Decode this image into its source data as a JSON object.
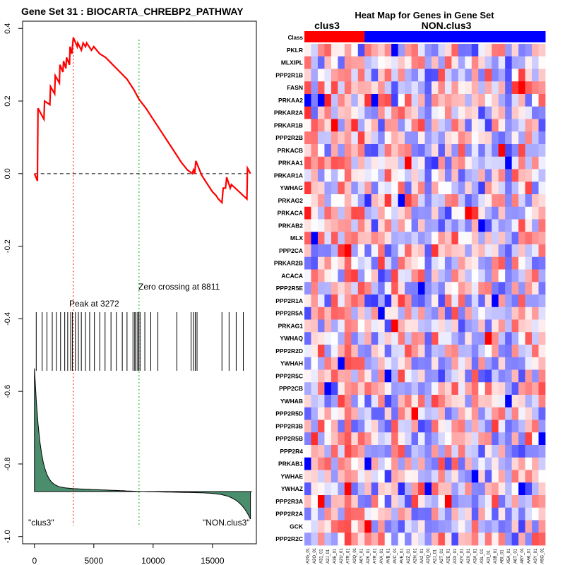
{
  "left_panel": {
    "title": "Gene Set  31 : BIOCARTA_CHREBP2_PATHWAY",
    "peak_label": "Peak at 3272",
    "zero_label": "Zero crossing at 8811",
    "class_left": "\"clus3\"",
    "class_right": "\"NON.clus3\"",
    "colors": {
      "es_line": "#ff0000",
      "peak_line": "#ff0000",
      "zero_line": "#00aa00",
      "ranked_fill": "#4a8e6e",
      "hits": "#000000"
    }
  },
  "chart_data": [
    {
      "type": "line",
      "title": "Gene Set  31 : BIOCARTA_CHREBP2_PATHWAY",
      "xlabel": "",
      "ylabel": "",
      "xlim": [
        -1000,
        18700
      ],
      "ylim": [
        -1.02,
        0.42
      ],
      "x_ticks": [
        0,
        5000,
        10000,
        15000
      ],
      "x_tick_labels": [
        "0",
        "5000",
        "10000",
        "15000"
      ],
      "y_ticks": [
        0.4,
        0.2,
        0.0,
        -0.2,
        -0.4,
        -0.6,
        -0.8,
        -1.0
      ],
      "y_tick_labels": [
        "0.4",
        "0.2",
        "0.0",
        "-0.2",
        "-0.4",
        "-0.6",
        "-0.8",
        "-1.0"
      ],
      "peak_position": 3272,
      "zero_crossing": 8811,
      "running_es": [
        [
          0,
          0.0
        ],
        [
          250,
          -0.02
        ],
        [
          300,
          0.18
        ],
        [
          800,
          0.15
        ],
        [
          850,
          0.2
        ],
        [
          1300,
          0.19
        ],
        [
          1350,
          0.24
        ],
        [
          1700,
          0.22
        ],
        [
          1750,
          0.27
        ],
        [
          2100,
          0.25
        ],
        [
          2150,
          0.3
        ],
        [
          2400,
          0.28
        ],
        [
          2450,
          0.31
        ],
        [
          2650,
          0.29
        ],
        [
          2700,
          0.32
        ],
        [
          2950,
          0.3
        ],
        [
          3000,
          0.35
        ],
        [
          3150,
          0.33
        ],
        [
          3272,
          0.375
        ],
        [
          3600,
          0.35
        ],
        [
          3650,
          0.36
        ],
        [
          3950,
          0.34
        ],
        [
          4100,
          0.36
        ],
        [
          4300,
          0.35
        ],
        [
          4400,
          0.36
        ],
        [
          4800,
          0.34
        ],
        [
          5000,
          0.35
        ],
        [
          5500,
          0.33
        ],
        [
          6000,
          0.32
        ],
        [
          6600,
          0.3
        ],
        [
          7200,
          0.28
        ],
        [
          7800,
          0.26
        ],
        [
          8400,
          0.23
        ],
        [
          8811,
          0.205
        ],
        [
          9400,
          0.18
        ],
        [
          10000,
          0.15
        ],
        [
          10600,
          0.12
        ],
        [
          11200,
          0.09
        ],
        [
          11800,
          0.06
        ],
        [
          12400,
          0.03
        ],
        [
          12900,
          0.01
        ],
        [
          13300,
          0.0
        ],
        [
          13400,
          0.01
        ],
        [
          13500,
          0.0
        ],
        [
          13600,
          0.035
        ],
        [
          14100,
          -0.005
        ],
        [
          14600,
          -0.03
        ],
        [
          15000,
          -0.05
        ],
        [
          15300,
          -0.06
        ],
        [
          15500,
          -0.07
        ],
        [
          15800,
          -0.08
        ],
        [
          15900,
          -0.04
        ],
        [
          16100,
          -0.04
        ],
        [
          16200,
          -0.01
        ],
        [
          16500,
          -0.04
        ],
        [
          16600,
          -0.03
        ],
        [
          17900,
          -0.07
        ],
        [
          17950,
          0.015
        ],
        [
          18200,
          0.0
        ]
      ],
      "hit_positions": [
        150,
        650,
        1050,
        1500,
        1850,
        2200,
        2550,
        2800,
        3050,
        3200,
        3450,
        3700,
        3950,
        4300,
        4650,
        5050,
        5500,
        5950,
        6450,
        6900,
        7400,
        7800,
        8300,
        8450,
        8550,
        8700,
        8800,
        8900,
        9300,
        9800,
        10400,
        12000,
        13200,
        13400,
        13550,
        13700,
        15800,
        16400,
        17000,
        17600
      ]
    },
    {
      "type": "heatmap",
      "title": "Heat Map for Genes in Gene Set",
      "class_row_label": "Class",
      "classes": [
        {
          "name": "clus3",
          "count": 9,
          "color": "#ff0000"
        },
        {
          "name": "NON.clus3",
          "count": 27,
          "color": "#0000ff"
        }
      ],
      "genes": [
        "PKLR",
        "MLXIPL",
        "PPP2R1B",
        "FASN",
        "PRKAA2",
        "PRKAR2A",
        "PRKAR1B",
        "PPP2R2B",
        "PRKACB",
        "PRKAA1",
        "PRKAR1A",
        "YWHAG",
        "PRKAG2",
        "PRKACA",
        "PRKAB2",
        "MLX",
        "PPP2CA",
        "PRKAR2B",
        "ACACA",
        "PPP2R5E",
        "PPP2R1A",
        "PPP2R5A",
        "PRKAG1",
        "YWHAQ",
        "PPP2R2D",
        "YWHAH",
        "PPP2R5C",
        "PPP2CB",
        "YWHAB",
        "PPP2R5D",
        "PPP2R3B",
        "PPP2R5B",
        "PPP2R4",
        "PRKAB1",
        "YWHAE",
        "YWHAZ",
        "PPP2R3A",
        "PPP2R2A",
        "GCK",
        "PPP2R2C"
      ],
      "samples": [
        "A2G_01",
        "A2O_01",
        "A31_01",
        "A2J_01",
        "A3E_01",
        "A2U_01",
        "A7R_01",
        "A2Q_01",
        "A6Y_01",
        "A2K_01",
        "A7R_01",
        "AYA_01",
        "AVB_01",
        "AVC_01",
        "AVE_01",
        "A2Z_01",
        "A2H_01",
        "AA2_01",
        "A2Q_01",
        "A2J_01",
        "A2T_01",
        "A2E_01",
        "A3X_01",
        "A2V_01",
        "A2X_01",
        "A3A_01",
        "A3L_01",
        "A2I_01",
        "A3B_01",
        "ABI_01",
        "A5A_01",
        "A6T_01",
        "ABY_01",
        "AA6_01",
        "A3Y_01",
        "A5G_01"
      ],
      "color_scale": {
        "low": "#0000ff",
        "mid": "#ffffff",
        "high": "#ff0000"
      }
    }
  ]
}
